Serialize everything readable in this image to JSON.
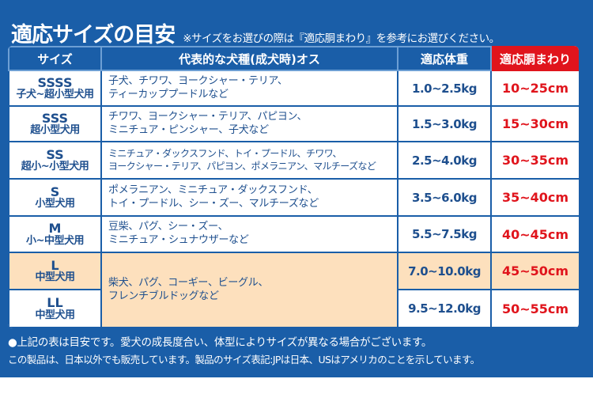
{
  "title": "適応サイズの目安",
  "note": "※サイズをお選びの際は『適応胴まわり』を参考にお選びください。",
  "headers": [
    "サイズ",
    "代表的な犬種(成犬時)オス",
    "適応体重",
    "適応胴まわり"
  ],
  "rows": [
    {
      "size": "SSSS",
      "for": "子犬~超小型犬用",
      "breeds": [
        "子犬、チワワ、ヨークシャー・テリア、",
        "ティーカッププードルなど"
      ],
      "weight": "1.0~2.5kg",
      "girth": "10~25cm"
    },
    {
      "size": "SSS",
      "for": "超小型犬用",
      "breeds": [
        "チワワ、ヨークシャー・テリア、パピヨン、",
        "ミニチュア・ピンシャー、子犬など"
      ],
      "weight": "1.5~3.0kg",
      "girth": "15~30cm"
    },
    {
      "size": "SS",
      "for": "超小~小型犬用",
      "breeds": [
        "ミニチュア・ダックスフンド、トイ・プードル、チワワ、",
        "ヨークシャー・テリア、パピヨン、ポメラニアン、マルチーズなど"
      ],
      "weight": "2.5~4.0kg",
      "girth": "30~35cm"
    },
    {
      "size": "S",
      "for": "小型犬用",
      "breeds": [
        "ポメラニアン、ミニチュア・ダックスフンド、",
        "トイ・プードル、シー・ズー、マルチーズなど"
      ],
      "weight": "3.5~6.0kg",
      "girth": "35~40cm"
    },
    {
      "size": "M",
      "for": "小~中型犬用",
      "breeds": [
        "豆柴、パグ、シー・ズー、",
        "ミニチュア・シュナウザーなど"
      ],
      "weight": "5.5~7.5kg",
      "girth": "40~45cm"
    },
    {
      "size": "L",
      "for": "中型犬用",
      "breeds": [
        "柴犬、パグ、コーギー、ビーグル、",
        "フレンチブルドッグなど"
      ],
      "weight": "7.0~10.0kg",
      "girth": "45~50cm"
    },
    {
      "size": "LL",
      "for": "中型犬用",
      "weight": "9.5~12.0kg",
      "girth": "50~55cm"
    }
  ],
  "footnotes": [
    "●上記の表は目安です。愛犬の成長度合い、体型によりサイズが異なる場合がございます。",
    "この製品は、日本以外でも販売しています。製品のサイズ表記:JPは日本、USはアメリカのことを示しています。"
  ],
  "colors": {
    "background": "#1a5ea8",
    "text": "#1e4f8e",
    "accent_red": "#e0141c",
    "highlight": "#fde0bd"
  }
}
